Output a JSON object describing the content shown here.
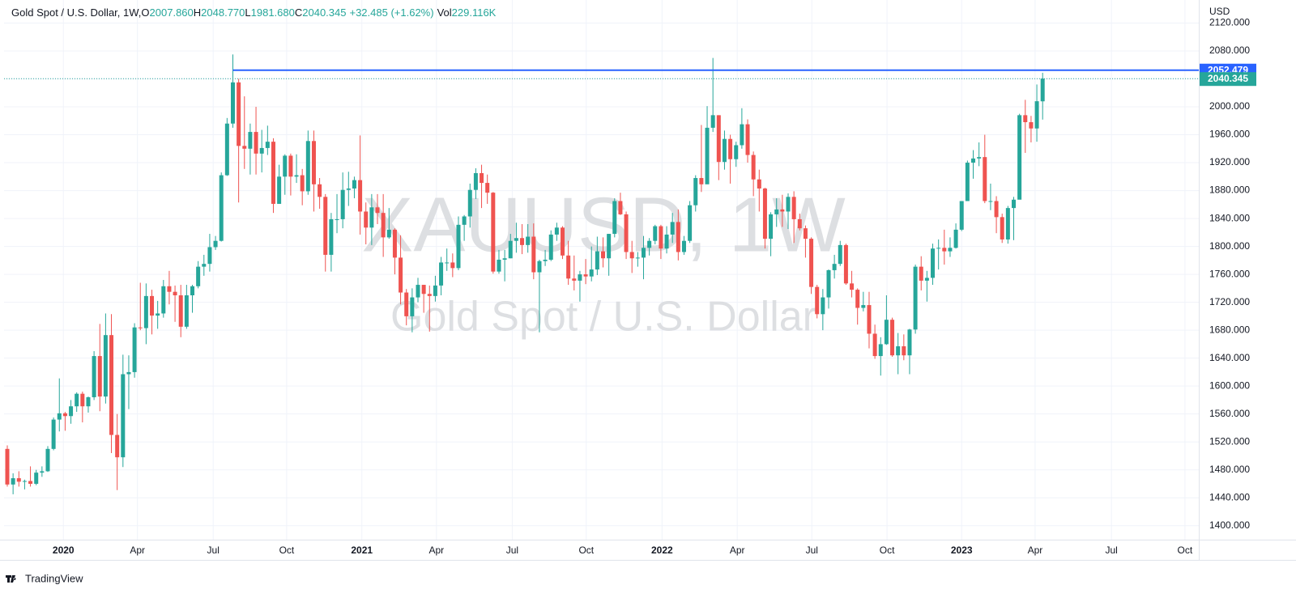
{
  "header": {
    "title": "Gold Spot / U.S. Dollar, 1W,",
    "ohlc": [
      {
        "key": "O",
        "value": "2007.860"
      },
      {
        "key": "H",
        "value": "2048.770"
      },
      {
        "key": "L",
        "value": "1981.680"
      },
      {
        "key": "C",
        "value": "2040.345"
      }
    ],
    "change": "+32.485 (+1.62%)",
    "volume_key": "Vol",
    "volume": "229.116K"
  },
  "watermark": {
    "symbol": "XAUUSD, 1W",
    "description": "Gold Spot / U.S. Dollar"
  },
  "currency": "USD",
  "logo": "TradingView",
  "chart_data": {
    "type": "candlestick",
    "up_color": "#26a69a",
    "down_color": "#ef5350",
    "grid": true,
    "ylim": [
      1380,
      2153
    ],
    "yticks": [
      {
        "value": 1400,
        "label": "1400.000"
      },
      {
        "value": 1440,
        "label": "1440.000"
      },
      {
        "value": 1480,
        "label": "1480.000"
      },
      {
        "value": 1520,
        "label": "1520.000"
      },
      {
        "value": 1560,
        "label": "1560.000"
      },
      {
        "value": 1600,
        "label": "1600.000"
      },
      {
        "value": 1640,
        "label": "1640.000"
      },
      {
        "value": 1680,
        "label": "1680.000"
      },
      {
        "value": 1720,
        "label": "1720.000"
      },
      {
        "value": 1760,
        "label": "1760.000"
      },
      {
        "value": 1800,
        "label": "1800.000"
      },
      {
        "value": 1840,
        "label": "1840.000"
      },
      {
        "value": 1880,
        "label": "1880.000"
      },
      {
        "value": 1920,
        "label": "1920.000"
      },
      {
        "value": 1960,
        "label": "1960.000"
      },
      {
        "value": 2000,
        "label": "2000.000"
      },
      {
        "value": 2040,
        "label": "2040.000"
      },
      {
        "value": 2080,
        "label": "2080.000"
      },
      {
        "value": 2120,
        "label": "2120.000"
      }
    ],
    "xlim": [
      -0.56,
      206
    ],
    "xticks": [
      {
        "value": 9.7,
        "label": "2020"
      },
      {
        "value": 22.5,
        "label": "Apr"
      },
      {
        "value": 35.6,
        "label": "Jul"
      },
      {
        "value": 48.3,
        "label": "Oct"
      },
      {
        "value": 61.3,
        "label": "2021"
      },
      {
        "value": 74.2,
        "label": "Apr"
      },
      {
        "value": 87.3,
        "label": "Jul"
      },
      {
        "value": 100.1,
        "label": "Oct"
      },
      {
        "value": 113.2,
        "label": "2022"
      },
      {
        "value": 126.2,
        "label": "Apr"
      },
      {
        "value": 139.1,
        "label": "Jul"
      },
      {
        "value": 152.1,
        "label": "Oct"
      },
      {
        "value": 165,
        "label": "2023"
      },
      {
        "value": 177.7,
        "label": "Apr"
      },
      {
        "value": 190.9,
        "label": "Jul"
      },
      {
        "value": 203.6,
        "label": "Oct"
      }
    ],
    "price_line": {
      "value": 2052.479,
      "label": "2052.479",
      "color": "#2962ff"
    },
    "last_price": {
      "value": 2040.345,
      "label": "2040.345",
      "color": "#26a69a"
    },
    "ohlc": [
      [
        1510,
        1515,
        1456,
        1459
      ],
      [
        1459,
        1475,
        1445,
        1468
      ],
      [
        1468,
        1478,
        1456,
        1463
      ],
      [
        1463,
        1466,
        1452,
        1464
      ],
      [
        1464,
        1485,
        1456,
        1460
      ],
      [
        1460,
        1480,
        1458,
        1476
      ],
      [
        1476,
        1485,
        1470,
        1478
      ],
      [
        1478,
        1514,
        1477,
        1510
      ],
      [
        1510,
        1555,
        1508,
        1552
      ],
      [
        1552,
        1611,
        1535,
        1561
      ],
      [
        1561,
        1563,
        1536,
        1557
      ],
      [
        1557,
        1580,
        1546,
        1571
      ],
      [
        1571,
        1591,
        1563,
        1589
      ],
      [
        1589,
        1592,
        1548,
        1571
      ],
      [
        1571,
        1585,
        1562,
        1584
      ],
      [
        1584,
        1650,
        1580,
        1643
      ],
      [
        1643,
        1689,
        1564,
        1585
      ],
      [
        1585,
        1704,
        1575,
        1673
      ],
      [
        1673,
        1703,
        1504,
        1530
      ],
      [
        1530,
        1560,
        1451,
        1498
      ],
      [
        1498,
        1645,
        1484,
        1617
      ],
      [
        1617,
        1644,
        1567,
        1620
      ],
      [
        1620,
        1690,
        1612,
        1684
      ],
      [
        1684,
        1748,
        1680,
        1683
      ],
      [
        1683,
        1747,
        1660,
        1729
      ],
      [
        1729,
        1738,
        1674,
        1701
      ],
      [
        1701,
        1722,
        1682,
        1704
      ],
      [
        1704,
        1752,
        1698,
        1743
      ],
      [
        1743,
        1765,
        1717,
        1735
      ],
      [
        1735,
        1744,
        1692,
        1730
      ],
      [
        1730,
        1745,
        1670,
        1685
      ],
      [
        1685,
        1745,
        1682,
        1730
      ],
      [
        1730,
        1745,
        1705,
        1743
      ],
      [
        1743,
        1779,
        1740,
        1771
      ],
      [
        1771,
        1788,
        1758,
        1775
      ],
      [
        1775,
        1818,
        1764,
        1799
      ],
      [
        1799,
        1815,
        1795,
        1808
      ],
      [
        1808,
        1906,
        1807,
        1902
      ],
      [
        1902,
        1984,
        1901,
        1976
      ],
      [
        1976,
        2075,
        1970,
        2035
      ],
      [
        2035,
        2040,
        1863,
        1944
      ],
      [
        1944,
        2015,
        1911,
        1940
      ],
      [
        1940,
        1976,
        1903,
        1964
      ],
      [
        1964,
        2000,
        1903,
        1933
      ],
      [
        1933,
        1967,
        1906,
        1941
      ],
      [
        1941,
        1973,
        1931,
        1950
      ],
      [
        1950,
        1955,
        1848,
        1861
      ],
      [
        1861,
        1917,
        1861,
        1900
      ],
      [
        1900,
        1932,
        1874,
        1930
      ],
      [
        1930,
        1933,
        1873,
        1900
      ],
      [
        1900,
        1932,
        1891,
        1902
      ],
      [
        1902,
        1911,
        1859,
        1879
      ],
      [
        1879,
        1966,
        1874,
        1951
      ],
      [
        1951,
        1966,
        1850,
        1889
      ],
      [
        1889,
        1898,
        1854,
        1871
      ],
      [
        1871,
        1875,
        1764,
        1788
      ],
      [
        1788,
        1848,
        1764,
        1839
      ],
      [
        1839,
        1875,
        1819,
        1839
      ],
      [
        1839,
        1906,
        1826,
        1881
      ],
      [
        1881,
        1907,
        1858,
        1883
      ],
      [
        1883,
        1900,
        1869,
        1895
      ],
      [
        1895,
        1959,
        1817,
        1850
      ],
      [
        1850,
        1863,
        1803,
        1827
      ],
      [
        1827,
        1875,
        1802,
        1856
      ],
      [
        1856,
        1875,
        1832,
        1848
      ],
      [
        1848,
        1875,
        1785,
        1813
      ],
      [
        1813,
        1855,
        1811,
        1824
      ],
      [
        1824,
        1826,
        1760,
        1784
      ],
      [
        1784,
        1816,
        1717,
        1734
      ],
      [
        1734,
        1739,
        1687,
        1700
      ],
      [
        1700,
        1740,
        1677,
        1727
      ],
      [
        1727,
        1755,
        1720,
        1745
      ],
      [
        1745,
        1745,
        1705,
        1732
      ],
      [
        1732,
        1744,
        1678,
        1729
      ],
      [
        1729,
        1758,
        1721,
        1744
      ],
      [
        1744,
        1785,
        1730,
        1777
      ],
      [
        1777,
        1797,
        1765,
        1777
      ],
      [
        1777,
        1790,
        1756,
        1769
      ],
      [
        1769,
        1843,
        1766,
        1831
      ],
      [
        1831,
        1845,
        1808,
        1843
      ],
      [
        1843,
        1890,
        1827,
        1881
      ],
      [
        1881,
        1912,
        1868,
        1905
      ],
      [
        1905,
        1917,
        1855,
        1891
      ],
      [
        1891,
        1903,
        1861,
        1877
      ],
      [
        1877,
        1878,
        1761,
        1764
      ],
      [
        1764,
        1795,
        1761,
        1781
      ],
      [
        1781,
        1795,
        1750,
        1783
      ],
      [
        1783,
        1818,
        1783,
        1808
      ],
      [
        1808,
        1834,
        1791,
        1812
      ],
      [
        1812,
        1832,
        1789,
        1802
      ],
      [
        1802,
        1832,
        1791,
        1814
      ],
      [
        1814,
        1833,
        1753,
        1763
      ],
      [
        1763,
        1781,
        1677,
        1779
      ],
      [
        1779,
        1795,
        1772,
        1781
      ],
      [
        1781,
        1823,
        1779,
        1817
      ],
      [
        1817,
        1834,
        1808,
        1827
      ],
      [
        1827,
        1829,
        1782,
        1787
      ],
      [
        1787,
        1808,
        1745,
        1754
      ],
      [
        1754,
        1787,
        1737,
        1751
      ],
      [
        1751,
        1765,
        1721,
        1760
      ],
      [
        1760,
        1782,
        1746,
        1757
      ],
      [
        1757,
        1800,
        1750,
        1767
      ],
      [
        1767,
        1814,
        1759,
        1793
      ],
      [
        1793,
        1813,
        1770,
        1783
      ],
      [
        1783,
        1818,
        1758,
        1818
      ],
      [
        1818,
        1869,
        1813,
        1865
      ],
      [
        1865,
        1877,
        1845,
        1846
      ],
      [
        1846,
        1850,
        1782,
        1792
      ],
      [
        1792,
        1808,
        1762,
        1783
      ],
      [
        1783,
        1792,
        1771,
        1784
      ],
      [
        1784,
        1815,
        1753,
        1798
      ],
      [
        1798,
        1812,
        1787,
        1808
      ],
      [
        1808,
        1831,
        1803,
        1829
      ],
      [
        1829,
        1831,
        1782,
        1797
      ],
      [
        1797,
        1829,
        1790,
        1817
      ],
      [
        1817,
        1848,
        1805,
        1835
      ],
      [
        1835,
        1853,
        1780,
        1792
      ],
      [
        1792,
        1815,
        1788,
        1808
      ],
      [
        1808,
        1865,
        1805,
        1859
      ],
      [
        1859,
        1902,
        1850,
        1898
      ],
      [
        1898,
        1974,
        1878,
        1889
      ],
      [
        1889,
        2001,
        1890,
        1970
      ],
      [
        1970,
        2070,
        1964,
        1988
      ],
      [
        1988,
        1988,
        1895,
        1921
      ],
      [
        1921,
        1966,
        1910,
        1954
      ],
      [
        1954,
        1960,
        1890,
        1925
      ],
      [
        1925,
        1950,
        1914,
        1945
      ],
      [
        1945,
        1998,
        1940,
        1975
      ],
      [
        1975,
        1982,
        1920,
        1931
      ],
      [
        1931,
        1936,
        1872,
        1896
      ],
      [
        1896,
        1910,
        1850,
        1883
      ],
      [
        1883,
        1884,
        1797,
        1811
      ],
      [
        1811,
        1849,
        1786,
        1846
      ],
      [
        1846,
        1869,
        1828,
        1853
      ],
      [
        1853,
        1874,
        1828,
        1850
      ],
      [
        1850,
        1876,
        1825,
        1871
      ],
      [
        1871,
        1879,
        1805,
        1839
      ],
      [
        1839,
        1847,
        1823,
        1826
      ],
      [
        1826,
        1830,
        1784,
        1811
      ],
      [
        1811,
        1813,
        1732,
        1742
      ],
      [
        1742,
        1745,
        1697,
        1703
      ],
      [
        1703,
        1739,
        1680,
        1727
      ],
      [
        1727,
        1767,
        1711,
        1766
      ],
      [
        1766,
        1788,
        1754,
        1775
      ],
      [
        1775,
        1808,
        1772,
        1802
      ],
      [
        1802,
        1804,
        1745,
        1747
      ],
      [
        1747,
        1765,
        1727,
        1738
      ],
      [
        1738,
        1740,
        1688,
        1712
      ],
      [
        1712,
        1735,
        1707,
        1716
      ],
      [
        1716,
        1735,
        1654,
        1675
      ],
      [
        1675,
        1688,
        1639,
        1643
      ],
      [
        1643,
        1670,
        1615,
        1660
      ],
      [
        1660,
        1730,
        1659,
        1695
      ],
      [
        1695,
        1698,
        1642,
        1644
      ],
      [
        1644,
        1676,
        1617,
        1657
      ],
      [
        1657,
        1674,
        1637,
        1644
      ],
      [
        1644,
        1682,
        1617,
        1681
      ],
      [
        1681,
        1774,
        1675,
        1771
      ],
      [
        1771,
        1786,
        1737,
        1751
      ],
      [
        1751,
        1765,
        1721,
        1755
      ],
      [
        1755,
        1804,
        1745,
        1797
      ],
      [
        1797,
        1810,
        1767,
        1798
      ],
      [
        1798,
        1824,
        1774,
        1793
      ],
      [
        1793,
        1813,
        1785,
        1798
      ],
      [
        1798,
        1833,
        1797,
        1824
      ],
      [
        1824,
        1865,
        1822,
        1865
      ],
      [
        1865,
        1923,
        1867,
        1920
      ],
      [
        1920,
        1938,
        1897,
        1926
      ],
      [
        1926,
        1949,
        1915,
        1928
      ],
      [
        1928,
        1960,
        1862,
        1865
      ],
      [
        1865,
        1890,
        1852,
        1865
      ],
      [
        1865,
        1872,
        1819,
        1842
      ],
      [
        1842,
        1847,
        1805,
        1810
      ],
      [
        1810,
        1858,
        1804,
        1855
      ],
      [
        1855,
        1871,
        1809,
        1867
      ],
      [
        1867,
        1990,
        1874,
        1988
      ],
      [
        1988,
        2010,
        1934,
        1978
      ],
      [
        1978,
        1987,
        1949,
        1969
      ],
      [
        1969,
        2032,
        1950,
        2008
      ],
      [
        2007.86,
        2048.77,
        1981.68,
        2040.345
      ]
    ]
  }
}
